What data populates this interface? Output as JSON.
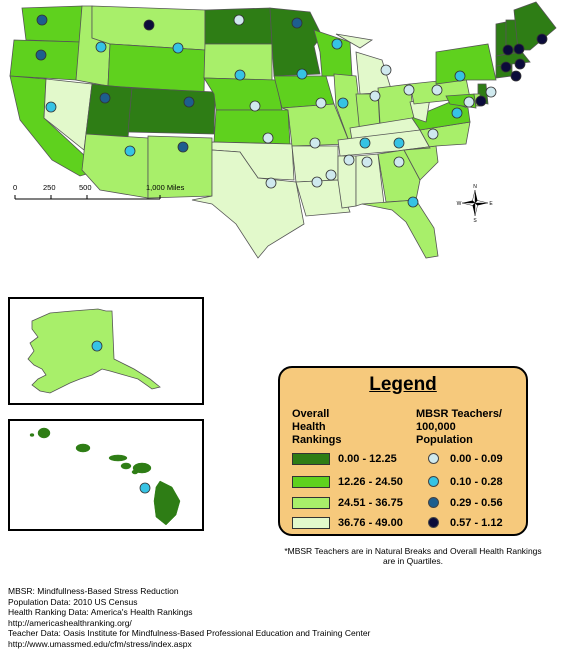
{
  "legend": {
    "title": "Legend",
    "health_heading": "Overall\nHealth\nRankings",
    "mbsr_heading": "MBSR Teachers/\n100,000\nPopulation",
    "health_classes": [
      {
        "label": "0.00 - 12.25",
        "color": "#2e7d15"
      },
      {
        "label": "12.26 - 24.50",
        "color": "#5fd11e"
      },
      {
        "label": "24.51 - 36.75",
        "color": "#a8ef6a"
      },
      {
        "label": "36.76 - 49.00",
        "color": "#e2f9cb"
      }
    ],
    "mbsr_classes": [
      {
        "label": "0.00 - 0.09",
        "color": "#cfe9ee"
      },
      {
        "label": "0.10 - 0.28",
        "color": "#36c3e4"
      },
      {
        "label": "0.29 - 0.56",
        "color": "#1d5e8e"
      },
      {
        "label": "0.57 - 1.12",
        "color": "#0b0b3a"
      }
    ]
  },
  "scale": {
    "ticks": [
      "0",
      "250",
      "500",
      "1,000 Miles"
    ]
  },
  "compass": {
    "icon": "compass-rose-icon",
    "n": "N",
    "s": "S",
    "e": "E",
    "w": "W"
  },
  "footnote": "*MBSR Teachers are in Natural Breaks and Overall Health Rankings are in Quartiles.",
  "credits": [
    "MBSR: Mindfullness-Based Stress Reduction",
    "Population Data: 2010 US Census",
    "Health Ranking Data: America's Health Rankings",
    "http://americashealthranking.org/",
    "Teacher Data: Oasis Institute for Mindfulness-Based Professional Education and Training Center",
    "http://www.umassmed.edu/cfm/stress/index.aspx"
  ]
}
